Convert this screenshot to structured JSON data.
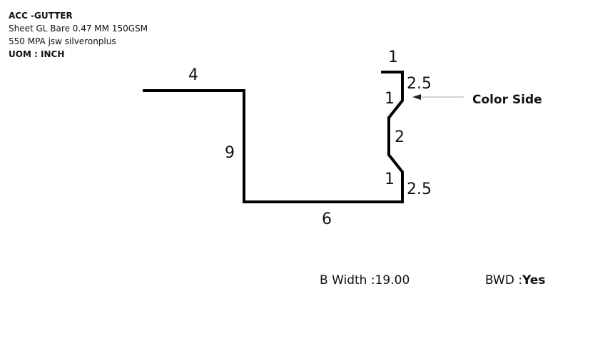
{
  "spec": {
    "title": "ACC -GUTTER",
    "material_line1": "Sheet GL Bare 0.47 MM 150GSM",
    "material_line2": "550 MPA jsw silveronplus",
    "uom": "UOM : INCH"
  },
  "dimensions": {
    "top_flange": "4",
    "left_wall": "9",
    "bottom": "6",
    "lip_top": "1",
    "upper_straight": "2.5",
    "upper_slope": "1",
    "middle": "2",
    "lower_slope": "1",
    "lower_straight": "2.5"
  },
  "annotation": {
    "color_side": "Color Side"
  },
  "footer": {
    "b_width_label": "B Width :",
    "b_width_value": "19.00",
    "bwd_label": "BWD :",
    "bwd_value": "Yes"
  },
  "colors": {
    "line": "#000000",
    "arrow": "#bbbbbb"
  }
}
